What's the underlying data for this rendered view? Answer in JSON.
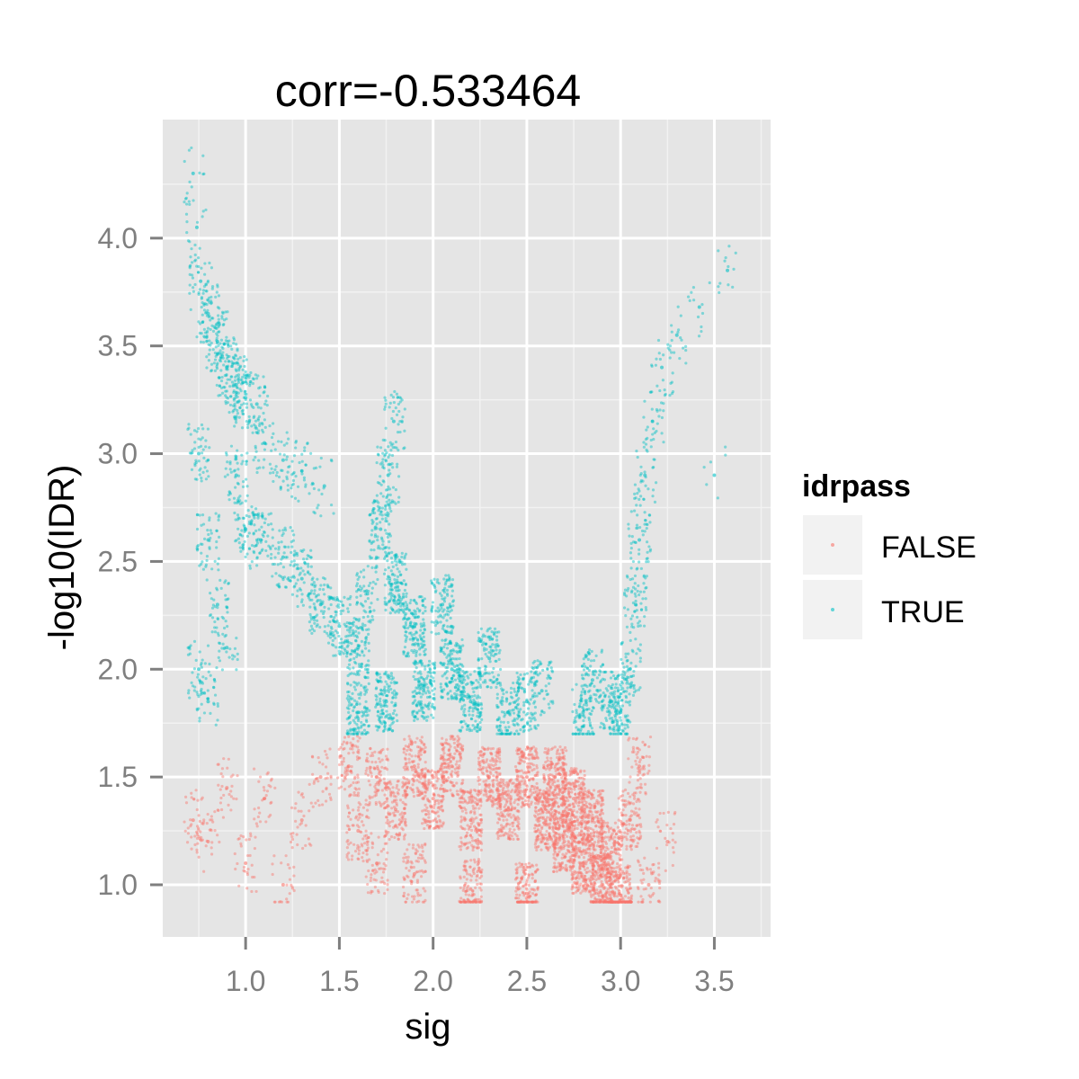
{
  "chart_data": {
    "type": "scatter",
    "title": "corr=-0.533464",
    "xlabel": "sig",
    "ylabel": "-log10(IDR)",
    "xlim": [
      0.558,
      3.8
    ],
    "ylim": [
      0.758,
      4.55
    ],
    "xticks": [
      1.0,
      1.5,
      2.0,
      2.5,
      3.0,
      3.5
    ],
    "xtick_labels": [
      "1.0",
      "1.5",
      "2.0",
      "2.5",
      "3.0",
      "3.5"
    ],
    "yticks": [
      1.0,
      1.5,
      2.0,
      2.5,
      3.0,
      3.5,
      4.0
    ],
    "ytick_labels": [
      "1.0",
      "1.5",
      "2.0",
      "2.5",
      "3.0",
      "3.5",
      "4.0"
    ],
    "grid": true,
    "legend": {
      "title": "idrpass",
      "placement": "right",
      "entries": [
        {
          "label": "FALSE",
          "color": "#F8766D"
        },
        {
          "label": "TRUE",
          "color": "#00BFC4"
        }
      ]
    },
    "series": [
      {
        "name": "FALSE",
        "color": "#F8766D",
        "points": [
          [
            0.72,
            1.3,
            6
          ],
          [
            0.8,
            1.2,
            5
          ],
          [
            0.9,
            1.45,
            5
          ],
          [
            1.0,
            1.1,
            5
          ],
          [
            1.1,
            1.4,
            5
          ],
          [
            1.2,
            1.0,
            4
          ],
          [
            1.3,
            1.3,
            5
          ],
          [
            1.4,
            1.5,
            6
          ],
          [
            1.55,
            1.55,
            14
          ],
          [
            1.6,
            1.25,
            12
          ],
          [
            1.7,
            1.5,
            16
          ],
          [
            1.8,
            1.35,
            20
          ],
          [
            1.9,
            1.55,
            24
          ],
          [
            2.0,
            1.4,
            26
          ],
          [
            2.1,
            1.55,
            26
          ],
          [
            2.2,
            1.3,
            26
          ],
          [
            2.3,
            1.5,
            28
          ],
          [
            2.4,
            1.35,
            28
          ],
          [
            2.5,
            1.5,
            30
          ],
          [
            2.6,
            1.3,
            34
          ],
          [
            2.65,
            1.5,
            34
          ],
          [
            2.7,
            1.2,
            36
          ],
          [
            2.75,
            1.4,
            34
          ],
          [
            2.8,
            1.1,
            36
          ],
          [
            2.85,
            1.3,
            32
          ],
          [
            2.9,
            1.0,
            36
          ],
          [
            2.95,
            1.15,
            30
          ],
          [
            3.0,
            0.95,
            30
          ],
          [
            3.05,
            1.3,
            18
          ],
          [
            3.1,
            1.55,
            10
          ],
          [
            3.15,
            1.0,
            8
          ],
          [
            3.25,
            1.2,
            4
          ],
          [
            2.2,
            0.98,
            20
          ],
          [
            2.5,
            0.96,
            24
          ],
          [
            1.9,
            1.05,
            14
          ],
          [
            1.7,
            1.1,
            10
          ]
        ]
      },
      {
        "name": "TRUE",
        "color": "#00BFC4",
        "points": [
          [
            0.72,
            4.3,
            2
          ],
          [
            0.74,
            4.05,
            3
          ],
          [
            0.76,
            3.8,
            6
          ],
          [
            0.8,
            3.65,
            10
          ],
          [
            0.85,
            3.52,
            12
          ],
          [
            0.9,
            3.4,
            12
          ],
          [
            0.95,
            3.32,
            12
          ],
          [
            1.0,
            3.26,
            10
          ],
          [
            1.06,
            3.23,
            6
          ],
          [
            0.75,
            3.0,
            8
          ],
          [
            0.8,
            2.6,
            8
          ],
          [
            0.85,
            2.3,
            6
          ],
          [
            0.75,
            2.0,
            6
          ],
          [
            0.8,
            1.85,
            6
          ],
          [
            0.95,
            2.9,
            8
          ],
          [
            1.0,
            2.65,
            10
          ],
          [
            0.9,
            2.1,
            5
          ],
          [
            1.1,
            3.05,
            6
          ],
          [
            1.2,
            2.97,
            6
          ],
          [
            1.3,
            2.92,
            5
          ],
          [
            1.42,
            2.85,
            3
          ],
          [
            1.08,
            2.6,
            10
          ],
          [
            1.2,
            2.52,
            10
          ],
          [
            1.3,
            2.42,
            10
          ],
          [
            1.4,
            2.3,
            12
          ],
          [
            1.5,
            2.2,
            16
          ],
          [
            1.6,
            2.1,
            18
          ],
          [
            1.65,
            2.35,
            10
          ],
          [
            1.72,
            2.65,
            16
          ],
          [
            1.76,
            2.9,
            10
          ],
          [
            1.79,
            3.15,
            8
          ],
          [
            1.8,
            2.4,
            22
          ],
          [
            1.9,
            2.2,
            24
          ],
          [
            1.95,
            1.9,
            26
          ],
          [
            2.05,
            2.3,
            18
          ],
          [
            2.1,
            2.0,
            26
          ],
          [
            2.2,
            1.85,
            24
          ],
          [
            2.3,
            2.05,
            18
          ],
          [
            2.4,
            1.8,
            18
          ],
          [
            2.5,
            1.85,
            14
          ],
          [
            2.58,
            1.9,
            10
          ],
          [
            1.6,
            1.8,
            20
          ],
          [
            1.75,
            1.85,
            24
          ],
          [
            2.8,
            1.8,
            16
          ],
          [
            2.85,
            1.95,
            12
          ],
          [
            2.95,
            1.85,
            16
          ],
          [
            3.0,
            1.8,
            14
          ],
          [
            3.05,
            2.0,
            10
          ],
          [
            3.08,
            2.3,
            10
          ],
          [
            3.1,
            2.6,
            8
          ],
          [
            3.13,
            2.9,
            6
          ],
          [
            3.17,
            3.15,
            5
          ],
          [
            3.22,
            3.4,
            4
          ],
          [
            3.3,
            3.55,
            3
          ],
          [
            3.42,
            3.68,
            2
          ],
          [
            3.57,
            3.85,
            2
          ],
          [
            3.5,
            2.9,
            1
          ]
        ]
      }
    ]
  }
}
